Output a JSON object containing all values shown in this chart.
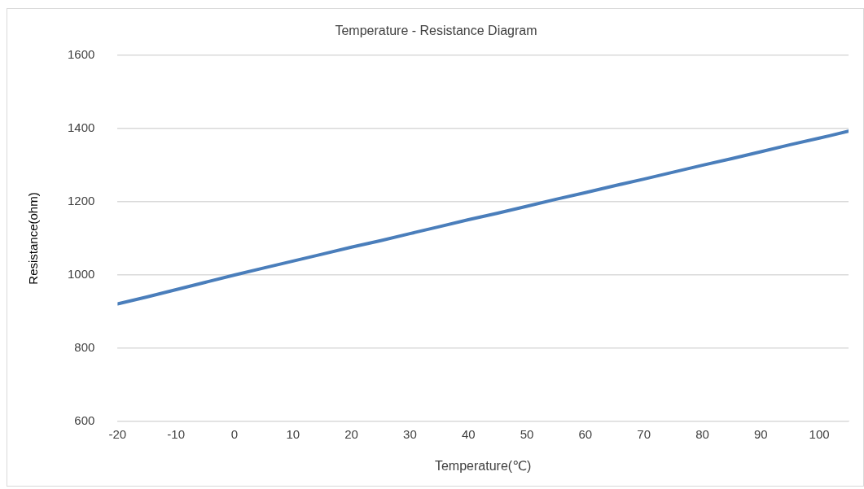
{
  "chart_data": {
    "type": "line",
    "title": "Temperature - Resistance Diagram",
    "xlabel": "Temperature(℃)",
    "ylabel": "Resistance(ohm)",
    "x": [
      -20,
      -15,
      -10,
      -5,
      0,
      5,
      10,
      15,
      20,
      25,
      30,
      35,
      40,
      45,
      50,
      55,
      60,
      65,
      70,
      75,
      80,
      85,
      90,
      95,
      100,
      105
    ],
    "series": [
      {
        "color": "#4a7ebb",
        "values": [
          921,
          940,
          960,
          980,
          1000,
          1019,
          1038,
          1057,
          1076,
          1094,
          1113,
          1132,
          1151,
          1169,
          1188,
          1207,
          1225,
          1244,
          1262,
          1281,
          1300,
          1318,
          1337,
          1356,
          1374,
          1393
        ]
      }
    ],
    "xlim": [
      -20,
      105
    ],
    "xticks": [
      -20,
      -10,
      0,
      10,
      20,
      30,
      40,
      50,
      60,
      70,
      80,
      90,
      100
    ],
    "ylim": [
      600,
      1600
    ],
    "yticks": [
      600,
      800,
      1000,
      1200,
      1400,
      1600
    ],
    "grid": "y",
    "legend": false,
    "marker": "none",
    "line_style": "solid"
  }
}
